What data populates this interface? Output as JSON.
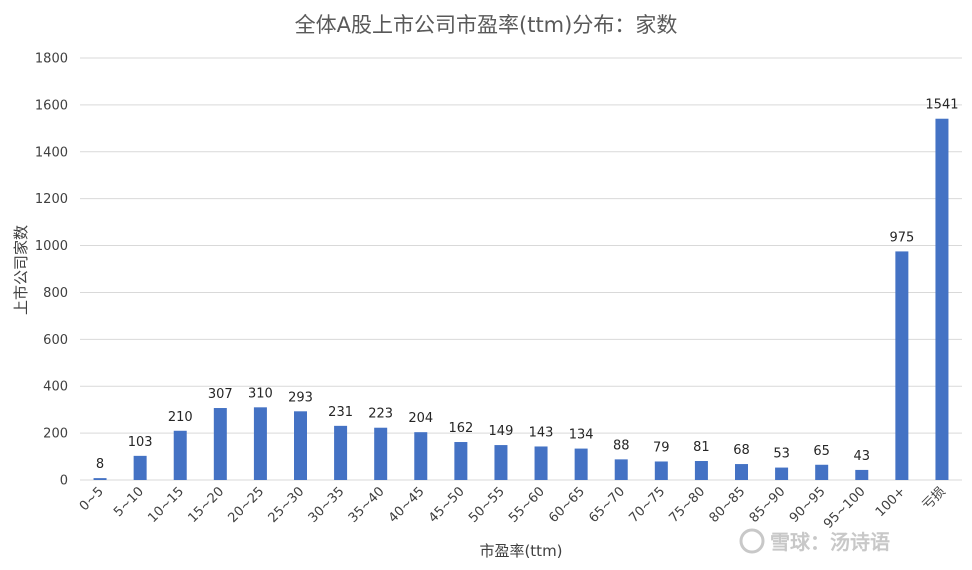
{
  "chart_data": {
    "type": "bar",
    "title": "全体A股上市公司市盈率(ttm)分布：家数",
    "xlabel": "市盈率(ttm)",
    "ylabel": "上市公司家数",
    "ylim": [
      0,
      1800
    ],
    "yticks": [
      0,
      200,
      400,
      600,
      800,
      1000,
      1200,
      1400,
      1600,
      1800
    ],
    "grid": true,
    "categories": [
      "0~5",
      "5~10",
      "10~15",
      "15~20",
      "20~25",
      "25~30",
      "30~35",
      "35~40",
      "40~45",
      "45~50",
      "50~55",
      "55~60",
      "60~65",
      "65~70",
      "70~75",
      "75~80",
      "80~85",
      "85~90",
      "90~95",
      "95~100",
      "100+",
      "亏损"
    ],
    "values": [
      8,
      103,
      210,
      307,
      310,
      293,
      231,
      223,
      204,
      162,
      149,
      143,
      134,
      88,
      79,
      81,
      68,
      53,
      65,
      43,
      975,
      1541
    ],
    "bar_color": "#4472c4"
  },
  "watermark": {
    "text": "雪球：汤诗语"
  }
}
